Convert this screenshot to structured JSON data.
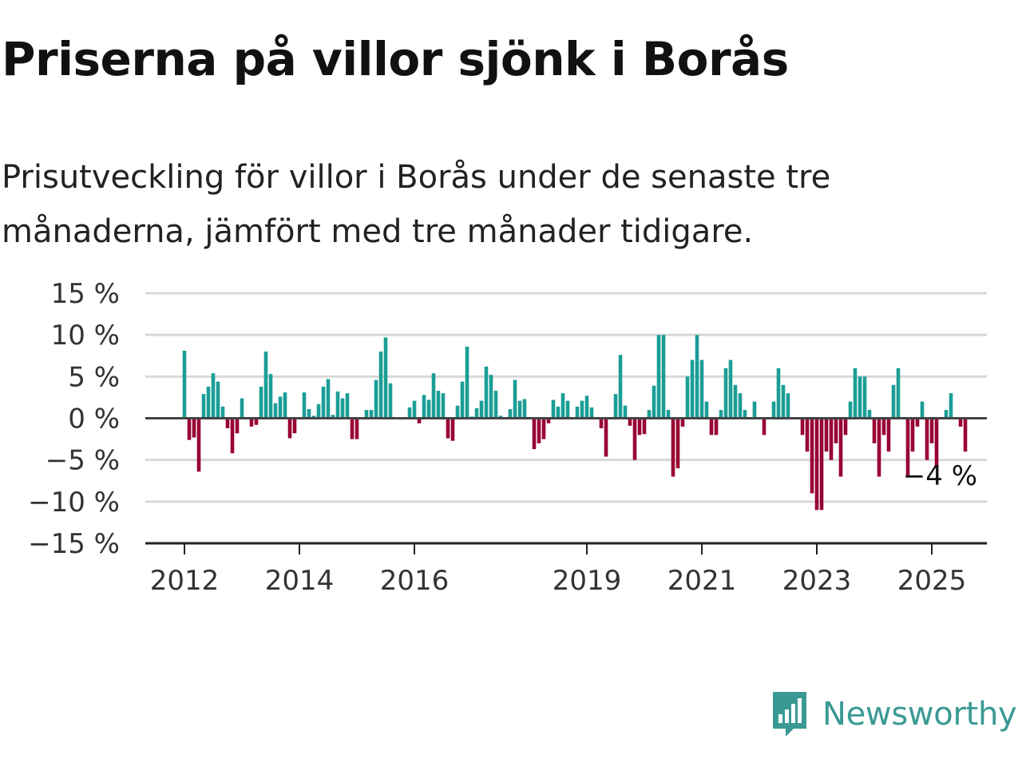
{
  "title": "Priserna på villor sjönk i Borås",
  "subtitle": "Prisutveckling för villor i Borås under de senaste tre månaderna, jämfört med tre månader tidigare.",
  "brand": "Newsworthy",
  "colors": {
    "positive": "#1a9e96",
    "negative": "#990033",
    "grid": "#d8d8d8",
    "axis": "#444444",
    "brand": "#3a9a93"
  },
  "chart_data": {
    "type": "bar",
    "ylim": [
      -15,
      15
    ],
    "yticks": [
      15,
      10,
      5,
      0,
      -5,
      -10,
      -15
    ],
    "ytick_labels": [
      "15 %",
      "10 %",
      "5 %",
      "0 %",
      "−5 %",
      "−10 %",
      "−15 %"
    ],
    "xticks": [
      2012,
      2014,
      2016,
      2019,
      2021,
      2023,
      2025
    ],
    "xtick_labels": [
      "2012",
      "2014",
      "2016",
      "2019",
      "2021",
      "2023",
      "2025"
    ],
    "grid": true,
    "x_start": "2012-01",
    "x_end": "2025-06",
    "values": [
      8.1,
      -2.6,
      -2.3,
      -6.4,
      2.9,
      3.8,
      5.4,
      4.4,
      1.4,
      -1.2,
      -4.2,
      -1.8,
      2.4,
      0,
      -1,
      -0.8,
      3.8,
      8,
      5.3,
      1.8,
      2.6,
      3.1,
      -2.4,
      -1.8,
      0,
      3.1,
      1.1,
      0.3,
      1.7,
      3.8,
      4.7,
      0.4,
      3.2,
      2.4,
      3,
      -2.5,
      -2.5,
      0,
      1,
      1,
      4.6,
      8,
      9.7,
      4.2,
      0,
      0,
      0,
      1.3,
      2.1,
      -0.6,
      2.8,
      2.2,
      5.4,
      3.3,
      3,
      -2.4,
      -2.7,
      1.5,
      4.4,
      8.6,
      0.2,
      1.2,
      2.1,
      6.2,
      5.2,
      3.3,
      0.3,
      0,
      1.1,
      4.6,
      2.1,
      2.3,
      0,
      -3.7,
      -3,
      -2.5,
      -0.6,
      2.2,
      1.4,
      3,
      2.1,
      0,
      1.4,
      2.1,
      2.7,
      1.3,
      0,
      -1.2,
      -4.6,
      0,
      2.9,
      7.6,
      1.5,
      -0.9,
      -5,
      -2,
      -1.9,
      1,
      3.9,
      10,
      10,
      1,
      -7,
      -6,
      -1,
      5,
      7,
      10,
      7,
      2,
      -2,
      -2,
      1,
      6,
      7,
      4,
      3,
      1,
      0,
      2,
      0,
      -2,
      0,
      2,
      6,
      4,
      3,
      0,
      0,
      -2,
      -4,
      -9,
      -11,
      -11,
      -4,
      -5,
      -3,
      -7,
      -2,
      2,
      6,
      5,
      5,
      1,
      -3,
      -7,
      -2,
      -4,
      4,
      6,
      0,
      -7,
      -4,
      -1,
      2,
      -5,
      -3,
      -6,
      0,
      1,
      3,
      0,
      -1,
      -4
    ],
    "annotations": [
      {
        "text": "−4 %",
        "target": "last"
      }
    ]
  }
}
